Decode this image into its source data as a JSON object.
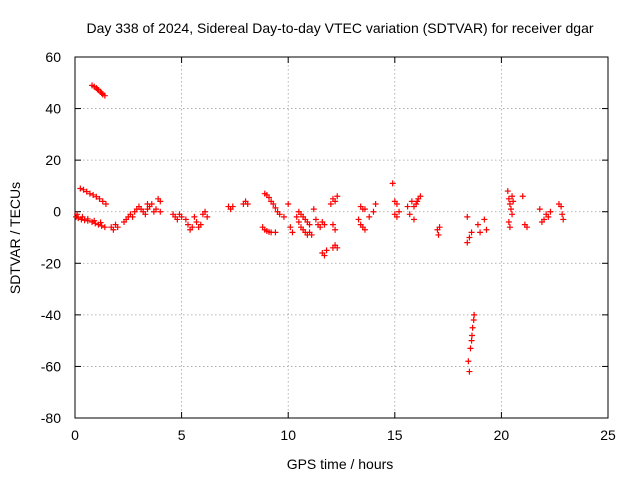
{
  "chart_data": {
    "type": "scatter",
    "title": "Day 338 of 2024, Sidereal Day-to-day VTEC variation (SDTVAR) for receiver dgar",
    "xlabel": "GPS time / hours",
    "ylabel": "SDTVAR / TECUs",
    "xlim": [
      0,
      25
    ],
    "ylim": [
      -80,
      60
    ],
    "xticks": [
      0,
      5,
      10,
      15,
      20,
      25
    ],
    "yticks": [
      -80,
      -60,
      -40,
      -20,
      0,
      20,
      40,
      60
    ],
    "grid": true,
    "marker": "+",
    "color": "#ff0000",
    "series": [
      {
        "name": "SDTVAR",
        "points": [
          [
            0.8,
            49
          ],
          [
            0.9,
            48.5
          ],
          [
            1.0,
            48
          ],
          [
            1.05,
            47.5
          ],
          [
            1.1,
            47.2
          ],
          [
            1.2,
            46.5
          ],
          [
            1.25,
            46
          ],
          [
            1.3,
            45.5
          ],
          [
            1.4,
            45
          ],
          [
            0.25,
            9
          ],
          [
            0.4,
            8.5
          ],
          [
            0.55,
            7.8
          ],
          [
            0.7,
            7
          ],
          [
            0.85,
            6.5
          ],
          [
            1.0,
            5.8
          ],
          [
            1.15,
            5
          ],
          [
            1.3,
            4
          ],
          [
            1.45,
            3
          ],
          [
            0.05,
            -2
          ],
          [
            0.15,
            -2.5
          ],
          [
            0.3,
            -3
          ],
          [
            0.45,
            -3.3
          ],
          [
            0.6,
            -3.5
          ],
          [
            0.8,
            -4
          ],
          [
            0.95,
            -4.5
          ],
          [
            1.1,
            -5
          ],
          [
            1.25,
            -5.5
          ],
          [
            1.4,
            -6
          ],
          [
            0.1,
            -1
          ],
          [
            0.35,
            -2
          ],
          [
            0.6,
            -2.8
          ],
          [
            0.9,
            -3.5
          ],
          [
            1.2,
            -4.2
          ],
          [
            1.7,
            -6
          ],
          [
            1.8,
            -7
          ],
          [
            1.9,
            -5
          ],
          [
            2.0,
            -6
          ],
          [
            2.3,
            -4
          ],
          [
            2.4,
            -3
          ],
          [
            2.5,
            -2
          ],
          [
            2.6,
            -1
          ],
          [
            2.7,
            -2
          ],
          [
            2.8,
            0
          ],
          [
            2.9,
            1
          ],
          [
            3.0,
            2
          ],
          [
            3.1,
            1
          ],
          [
            3.2,
            0
          ],
          [
            3.3,
            -1
          ],
          [
            3.4,
            1
          ],
          [
            3.4,
            3
          ],
          [
            3.5,
            2
          ],
          [
            3.6,
            3
          ],
          [
            3.7,
            0
          ],
          [
            3.8,
            1
          ],
          [
            3.9,
            5
          ],
          [
            4.0,
            4
          ],
          [
            4.0,
            0
          ],
          [
            4.6,
            -1
          ],
          [
            4.7,
            -2
          ],
          [
            4.8,
            -3
          ],
          [
            4.9,
            -1
          ],
          [
            5.0,
            -2
          ],
          [
            5.2,
            -3
          ],
          [
            5.3,
            -5
          ],
          [
            5.4,
            -7
          ],
          [
            5.5,
            -6
          ],
          [
            5.6,
            -2
          ],
          [
            5.7,
            -4
          ],
          [
            5.8,
            -6
          ],
          [
            5.9,
            -5
          ],
          [
            6.0,
            -1
          ],
          [
            6.1,
            0
          ],
          [
            6.2,
            -2
          ],
          [
            7.2,
            2
          ],
          [
            7.3,
            1
          ],
          [
            7.4,
            2
          ],
          [
            7.9,
            3
          ],
          [
            8.0,
            4
          ],
          [
            8.1,
            3
          ],
          [
            8.8,
            -6
          ],
          [
            8.9,
            -7
          ],
          [
            9.0,
            -7.5
          ],
          [
            9.1,
            -7.8
          ],
          [
            9.2,
            -8
          ],
          [
            9.4,
            -8
          ],
          [
            8.9,
            7
          ],
          [
            9.0,
            6.5
          ],
          [
            9.1,
            5.5
          ],
          [
            9.2,
            4
          ],
          [
            9.3,
            3
          ],
          [
            9.4,
            1.5
          ],
          [
            9.5,
            0
          ],
          [
            9.6,
            -1
          ],
          [
            9.8,
            -2
          ],
          [
            10.0,
            3
          ],
          [
            10.1,
            -6
          ],
          [
            10.2,
            -8
          ],
          [
            10.4,
            -2
          ],
          [
            10.5,
            -4
          ],
          [
            10.6,
            -6
          ],
          [
            10.7,
            -7
          ],
          [
            10.8,
            -8
          ],
          [
            10.9,
            -9
          ],
          [
            11.0,
            -8
          ],
          [
            11.1,
            -9
          ],
          [
            10.5,
            0
          ],
          [
            10.6,
            -1
          ],
          [
            10.7,
            -2
          ],
          [
            10.8,
            -3
          ],
          [
            10.9,
            -4
          ],
          [
            11.0,
            -5
          ],
          [
            11.2,
            1
          ],
          [
            11.3,
            -3
          ],
          [
            11.4,
            -5
          ],
          [
            11.5,
            -6
          ],
          [
            11.6,
            -4
          ],
          [
            11.7,
            -5
          ],
          [
            11.6,
            -16
          ],
          [
            11.7,
            -17
          ],
          [
            11.8,
            -15
          ],
          [
            12.1,
            -14
          ],
          [
            12.2,
            -13
          ],
          [
            12.3,
            -14
          ],
          [
            12.0,
            3
          ],
          [
            12.1,
            5
          ],
          [
            12.2,
            4
          ],
          [
            12.3,
            6
          ],
          [
            12.1,
            -5
          ],
          [
            12.2,
            -7
          ],
          [
            13.3,
            -3
          ],
          [
            13.4,
            -5
          ],
          [
            13.5,
            -6
          ],
          [
            13.6,
            -7
          ],
          [
            13.4,
            2
          ],
          [
            13.5,
            1
          ],
          [
            13.6,
            1
          ],
          [
            13.8,
            -2
          ],
          [
            14.0,
            0
          ],
          [
            14.1,
            3
          ],
          [
            14.9,
            11
          ],
          [
            15.0,
            4
          ],
          [
            15.1,
            3
          ],
          [
            15.0,
            -1
          ],
          [
            15.1,
            -2
          ],
          [
            15.2,
            0
          ],
          [
            15.6,
            2
          ],
          [
            15.7,
            -1
          ],
          [
            15.8,
            4
          ],
          [
            15.9,
            -3
          ],
          [
            15.9,
            2
          ],
          [
            16.0,
            3
          ],
          [
            16.05,
            4
          ],
          [
            16.1,
            5
          ],
          [
            16.2,
            6
          ],
          [
            17.0,
            -7
          ],
          [
            17.05,
            -9
          ],
          [
            17.1,
            -6
          ],
          [
            18.4,
            -2
          ],
          [
            18.5,
            -10
          ],
          [
            18.6,
            -8
          ],
          [
            18.4,
            -12
          ],
          [
            18.9,
            -5
          ],
          [
            19.0,
            -8
          ],
          [
            19.2,
            -3
          ],
          [
            19.3,
            -7
          ],
          [
            18.45,
            -58
          ],
          [
            18.5,
            -62
          ],
          [
            18.55,
            -53
          ],
          [
            18.6,
            -50
          ],
          [
            18.62,
            -48
          ],
          [
            18.65,
            -45
          ],
          [
            18.7,
            -42
          ],
          [
            18.72,
            -40
          ],
          [
            20.3,
            8
          ],
          [
            20.35,
            5
          ],
          [
            20.4,
            3
          ],
          [
            20.45,
            1
          ],
          [
            20.5,
            -1
          ],
          [
            20.35,
            -4
          ],
          [
            20.4,
            -6
          ],
          [
            20.5,
            6
          ],
          [
            20.55,
            4
          ],
          [
            21.0,
            6
          ],
          [
            21.1,
            -5
          ],
          [
            21.2,
            -6
          ],
          [
            21.8,
            1
          ],
          [
            21.9,
            -4
          ],
          [
            22.0,
            -3
          ],
          [
            22.1,
            -1
          ],
          [
            22.2,
            -2
          ],
          [
            22.3,
            0
          ],
          [
            22.7,
            3
          ],
          [
            22.8,
            2
          ],
          [
            22.85,
            -1
          ],
          [
            22.9,
            -3
          ]
        ]
      }
    ]
  }
}
